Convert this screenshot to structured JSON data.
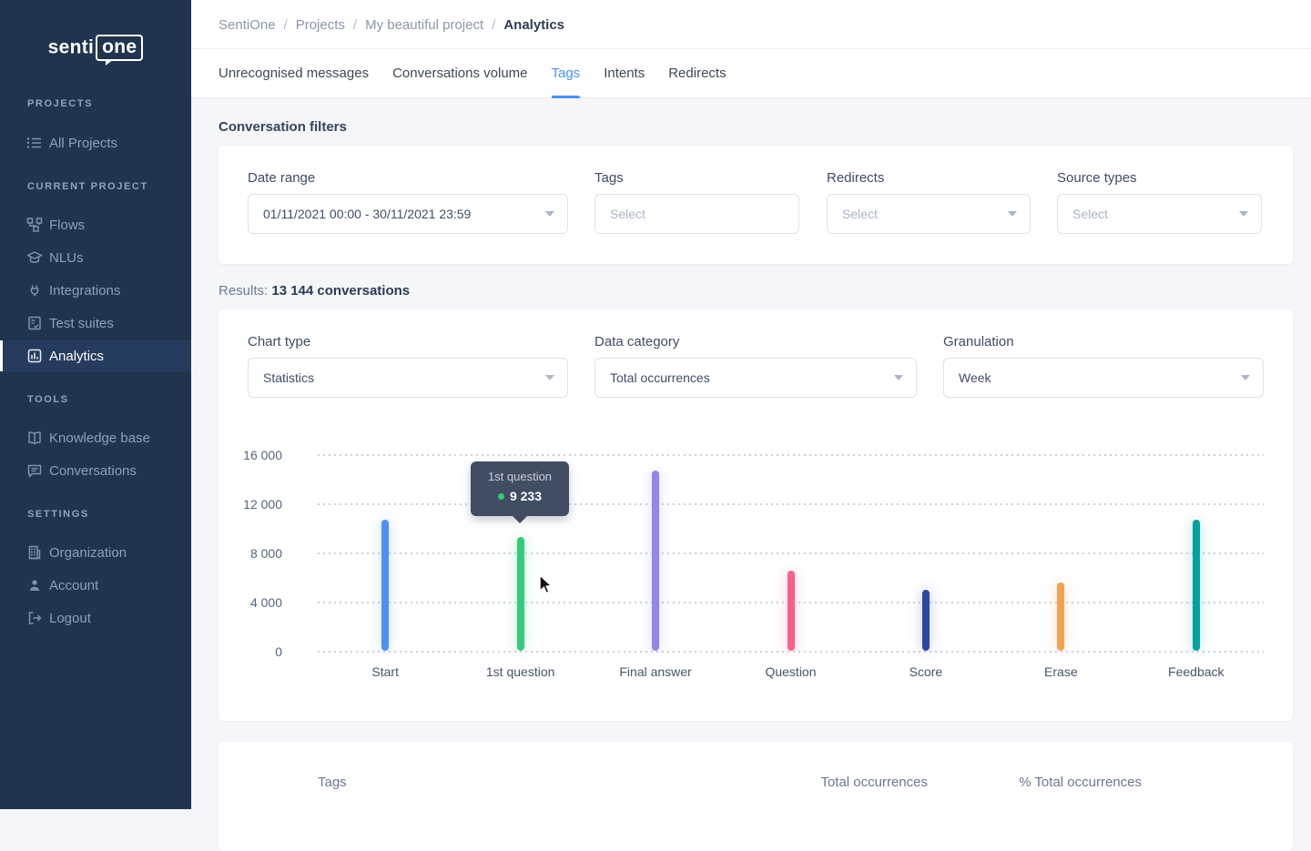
{
  "sidebar": {
    "logo": {
      "prefix": "senti",
      "boxed": "one"
    },
    "sections": [
      {
        "title": "PROJECTS",
        "items": [
          {
            "label": "All Projects",
            "icon": "list-icon"
          }
        ]
      },
      {
        "title": "CURRENT PROJECT",
        "items": [
          {
            "label": "Flows",
            "icon": "flow-icon"
          },
          {
            "label": "NLUs",
            "icon": "graduation-cap-icon"
          },
          {
            "label": "Integrations",
            "icon": "plug-icon"
          },
          {
            "label": "Test suites",
            "icon": "checklist-icon"
          },
          {
            "label": "Analytics",
            "icon": "bar-chart-icon",
            "active": true
          }
        ]
      },
      {
        "title": "TOOLS",
        "items": [
          {
            "label": "Knowledge base",
            "icon": "book-icon"
          },
          {
            "label": "Conversations",
            "icon": "chat-bubble-icon"
          }
        ]
      },
      {
        "title": "SETTINGS",
        "items": [
          {
            "label": "Organization",
            "icon": "building-icon"
          },
          {
            "label": "Account",
            "icon": "person-icon"
          },
          {
            "label": "Logout",
            "icon": "logout-icon"
          }
        ]
      }
    ]
  },
  "breadcrumb": {
    "items": [
      "SentiOne",
      "Projects",
      "My beautiful project",
      "Analytics"
    ],
    "separator": "/"
  },
  "tabs": [
    {
      "label": "Unrecognised messages",
      "active": false
    },
    {
      "label": "Conversations volume",
      "active": false
    },
    {
      "label": "Tags",
      "active": true
    },
    {
      "label": "Intents",
      "active": false
    },
    {
      "label": "Redirects",
      "active": false
    }
  ],
  "filters": {
    "title": "Conversation filters",
    "fields": [
      {
        "label": "Date range",
        "value": "01/11/2021 00:00 - 30/11/2021 23:59"
      },
      {
        "label": "Tags",
        "placeholder": "Select"
      },
      {
        "label": "Redirects",
        "placeholder": "Select"
      },
      {
        "label": "Source types",
        "placeholder": "Select"
      }
    ]
  },
  "results": {
    "prefix": "Results:",
    "bold": "13 144 conversations"
  },
  "chart_controls": [
    {
      "label": "Chart type",
      "value": "Statistics"
    },
    {
      "label": "Data category",
      "value": "Total occurrences"
    },
    {
      "label": "Granulation",
      "value": "Week"
    }
  ],
  "chart_data": {
    "type": "bar",
    "title": "",
    "xlabel": "",
    "ylabel": "",
    "categories": [
      "Start",
      "1st question",
      "Final answer",
      "Question",
      "Score",
      "Erase",
      "Feedback"
    ],
    "values": [
      10650,
      9233,
      14700,
      6500,
      4950,
      5550,
      10650
    ],
    "colors": [
      "#4a90f8",
      "#33cc7a",
      "#9186ee",
      "#fb5f88",
      "#2b46a6",
      "#f2a350",
      "#00a39f"
    ],
    "ylim": [
      0,
      16000
    ],
    "yticks_top_to_bottom": [
      "16 000",
      "12 000",
      "8 000",
      "4 000",
      "0"
    ],
    "grid": "horizontal-dotted",
    "legend": "none",
    "tooltip": {
      "title": "1st question",
      "value": "9 233",
      "dot_color": "#33cc7a"
    }
  },
  "table": {
    "headers": [
      "Tags",
      "Total occurrences",
      "% Total occurrences"
    ]
  }
}
